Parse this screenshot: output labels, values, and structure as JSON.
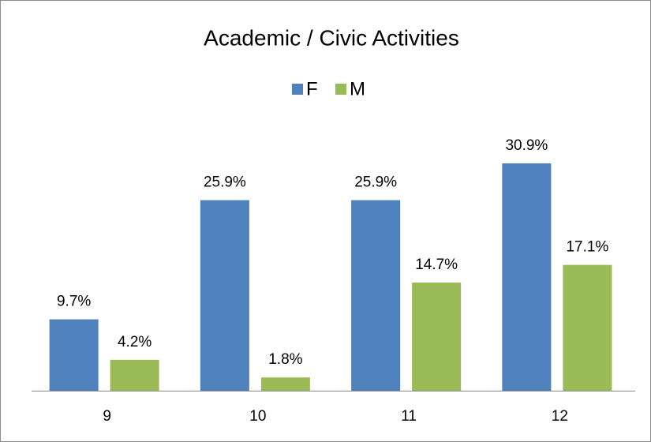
{
  "chart_data": {
    "type": "bar",
    "title": "Academic / Civic Activities",
    "categories": [
      "9",
      "10",
      "11",
      "12"
    ],
    "series": [
      {
        "name": "F",
        "color": "#4f81bd",
        "values": [
          9.7,
          25.9,
          25.9,
          30.9
        ],
        "value_labels": [
          "9.7%",
          "25.9%",
          "25.9%",
          "30.9%"
        ]
      },
      {
        "name": "M",
        "color": "#9bbb59",
        "values": [
          4.2,
          1.8,
          14.7,
          17.1
        ],
        "value_labels": [
          "4.2%",
          "1.8%",
          "14.7%",
          "17.1%"
        ]
      }
    ],
    "legend": "top"
  }
}
